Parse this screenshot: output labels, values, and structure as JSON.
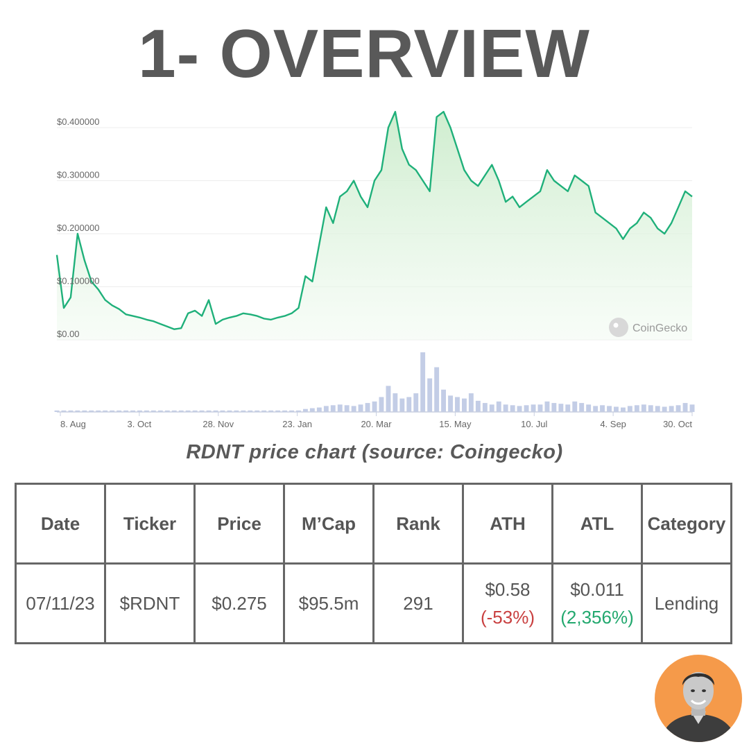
{
  "title": "1- OVERVIEW",
  "caption": "RDNT price chart (source: Coingecko)",
  "watermark": "CoinGecko",
  "colors": {
    "line": "#1fb07a",
    "fill_top": "#c9ebc9",
    "volume": "#c3cde6",
    "negative": "#c94040",
    "positive": "#22a86e",
    "avatar_bg": "#f59a4a"
  },
  "chart_data": {
    "type": "area",
    "y_ticks": [
      "$0.400000",
      "$0.300000",
      "$0.200000",
      "$0.100000",
      "$0.00"
    ],
    "y_tick_values": [
      0.4,
      0.3,
      0.2,
      0.1,
      0
    ],
    "ylim": [
      0,
      0.4
    ],
    "x_ticks": [
      "8. Aug",
      "3. Oct",
      "28. Nov",
      "23. Jan",
      "20. Mar",
      "15. May",
      "10. Jul",
      "4. Sep",
      "30. Oct"
    ],
    "series": [
      {
        "values": [
          0.16,
          0.06,
          0.08,
          0.2,
          0.15,
          0.11,
          0.095,
          0.075,
          0.065,
          0.058,
          0.048,
          0.045,
          0.042,
          0.038,
          0.035,
          0.03,
          0.025,
          0.02,
          0.022,
          0.05,
          0.055,
          0.045,
          0.075,
          0.03,
          0.038,
          0.042,
          0.045,
          0.05,
          0.048,
          0.045,
          0.04,
          0.038,
          0.042,
          0.045,
          0.05,
          0.06,
          0.12,
          0.11,
          0.18,
          0.25,
          0.22,
          0.27,
          0.28,
          0.3,
          0.27,
          0.25,
          0.3,
          0.32,
          0.4,
          0.43,
          0.36,
          0.33,
          0.32,
          0.3,
          0.28,
          0.42,
          0.43,
          0.4,
          0.36,
          0.32,
          0.3,
          0.29,
          0.31,
          0.33,
          0.3,
          0.26,
          0.27,
          0.25,
          0.26,
          0.27,
          0.28,
          0.32,
          0.3,
          0.29,
          0.28,
          0.31,
          0.3,
          0.29,
          0.24,
          0.23,
          0.22,
          0.21,
          0.19,
          0.21,
          0.22,
          0.24,
          0.23,
          0.21,
          0.2,
          0.22,
          0.25,
          0.28,
          0.27
        ],
        "volume": [
          2,
          2,
          2,
          2,
          2,
          2,
          2,
          2,
          2,
          2,
          2,
          2,
          2,
          2,
          2,
          2,
          2,
          2,
          2,
          2,
          2,
          2,
          2,
          2,
          2,
          2,
          2,
          2,
          2,
          2,
          2,
          2,
          2,
          2,
          2,
          2,
          4,
          5,
          6,
          8,
          9,
          10,
          9,
          8,
          10,
          12,
          14,
          20,
          35,
          25,
          18,
          20,
          25,
          80,
          45,
          60,
          30,
          22,
          20,
          18,
          25,
          15,
          12,
          10,
          14,
          10,
          9,
          8,
          9,
          10,
          10,
          14,
          12,
          11,
          10,
          14,
          12,
          10,
          8,
          9,
          8,
          7,
          6,
          8,
          9,
          10,
          9,
          8,
          7,
          8,
          9,
          12,
          10
        ]
      }
    ]
  },
  "table": {
    "headers": [
      "Date",
      "Ticker",
      "Price",
      "M’Cap",
      "Rank",
      "ATH",
      "ATL",
      "Category"
    ],
    "row": {
      "date": "07/11/23",
      "ticker": "$RDNT",
      "price": "$0.275",
      "mcap": "$95.5m",
      "rank": "291",
      "ath": "$0.58",
      "ath_change": "(-53%)",
      "atl": "$0.011",
      "atl_change": "(2,356%)",
      "category": "Lending"
    }
  }
}
